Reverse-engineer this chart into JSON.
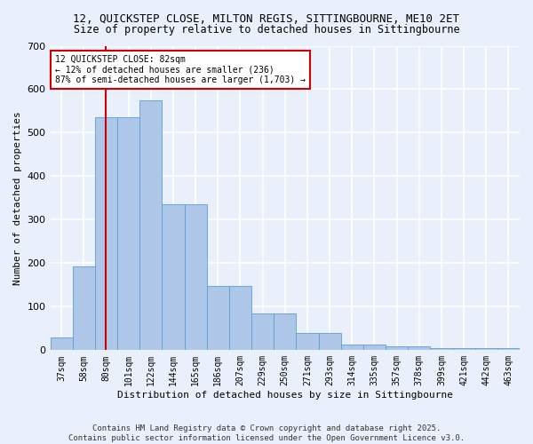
{
  "title_line1": "12, QUICKSTEP CLOSE, MILTON REGIS, SITTINGBOURNE, ME10 2ET",
  "title_line2": "Size of property relative to detached houses in Sittingbourne",
  "xlabel": "Distribution of detached houses by size in Sittingbourne",
  "ylabel": "Number of detached properties",
  "categories": [
    "37sqm",
    "58sqm",
    "80sqm",
    "101sqm",
    "122sqm",
    "144sqm",
    "165sqm",
    "186sqm",
    "207sqm",
    "229sqm",
    "250sqm",
    "271sqm",
    "293sqm",
    "314sqm",
    "335sqm",
    "357sqm",
    "378sqm",
    "399sqm",
    "421sqm",
    "442sqm",
    "463sqm"
  ],
  "values": [
    30,
    192,
    535,
    535,
    575,
    335,
    335,
    148,
    148,
    85,
    85,
    40,
    40,
    12,
    12,
    8,
    8,
    5,
    5,
    5,
    5
  ],
  "bar_color": "#aec6e8",
  "bar_edge_color": "#5a9fd4",
  "background_color": "#eaf0fb",
  "grid_color": "#d0d8ea",
  "annotation_box_text": "12 QUICKSTEP CLOSE: 82sqm\n← 12% of detached houses are smaller (236)\n87% of semi-detached houses are larger (1,703) →",
  "vline_x_index": 2,
  "vline_color": "#cc0000",
  "annotation_box_color": "#ffffff",
  "annotation_box_edge": "#cc0000",
  "footer_line1": "Contains HM Land Registry data © Crown copyright and database right 2025.",
  "footer_line2": "Contains public sector information licensed under the Open Government Licence v3.0.",
  "ylim": [
    0,
    700
  ],
  "yticks": [
    0,
    100,
    200,
    300,
    400,
    500,
    600,
    700
  ],
  "title_fontsize": 9,
  "subtitle_fontsize": 8.5,
  "axis_label_fontsize": 8,
  "tick_fontsize": 7,
  "footer_fontsize": 6.5
}
